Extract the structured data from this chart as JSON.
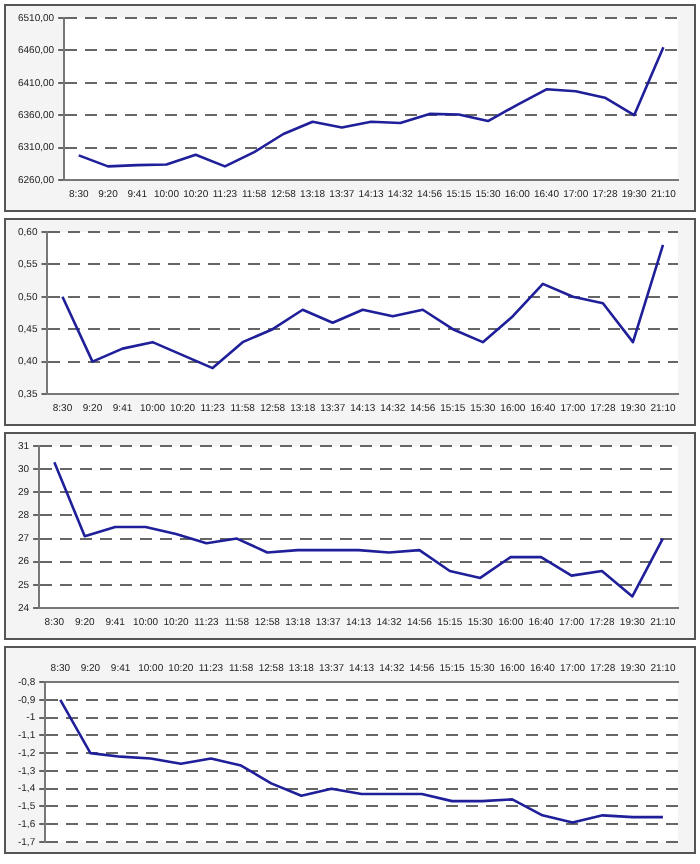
{
  "chart_data": [
    {
      "type": "line",
      "categories": [
        "8:30",
        "9:20",
        "9:41",
        "10:00",
        "10:20",
        "11:23",
        "11:58",
        "12:58",
        "13:18",
        "13:37",
        "14:13",
        "14:32",
        "14:56",
        "15:15",
        "15:30",
        "16:00",
        "16:40",
        "17:00",
        "17:28",
        "19:30",
        "21:10"
      ],
      "series": [
        {
          "color": "#1f1f9a",
          "values": [
            6298,
            6281,
            6283,
            6284,
            6299,
            6281,
            6303,
            6331,
            6350,
            6341,
            6350,
            6348,
            6362,
            6361,
            6351,
            6376,
            6400,
            6397,
            6387,
            6360,
            6465
          ]
        }
      ],
      "ylim": [
        6260,
        6510
      ],
      "yticks": [
        {
          "value": 6260,
          "label": "6260,00"
        },
        {
          "value": 6310,
          "label": "6310,00"
        },
        {
          "value": 6360,
          "label": "6360,00"
        },
        {
          "value": 6410,
          "label": "6410,00"
        },
        {
          "value": 6460,
          "label": "6460,00"
        },
        {
          "value": 6510,
          "label": "6510,00"
        }
      ],
      "grid": "y",
      "legend": false,
      "marker": "none",
      "line_style": "solid"
    },
    {
      "type": "line",
      "categories": [
        "8:30",
        "9:20",
        "9:41",
        "10:00",
        "10:20",
        "11:23",
        "11:58",
        "12:58",
        "13:18",
        "13:37",
        "14:13",
        "14:32",
        "14:56",
        "15:15",
        "15:30",
        "16:00",
        "16:40",
        "17:00",
        "17:28",
        "19:30",
        "21:10"
      ],
      "series": [
        {
          "color": "#1f1f9a",
          "values": [
            0.5,
            0.4,
            0.42,
            0.43,
            0.41,
            0.39,
            0.43,
            0.45,
            0.48,
            0.46,
            0.48,
            0.47,
            0.48,
            0.45,
            0.43,
            0.47,
            0.52,
            0.5,
            0.49,
            0.43,
            0.58
          ]
        }
      ],
      "ylim": [
        0.35,
        0.6
      ],
      "yticks": [
        {
          "value": 0.35,
          "label": "0,35"
        },
        {
          "value": 0.4,
          "label": "0,40"
        },
        {
          "value": 0.45,
          "label": "0,45"
        },
        {
          "value": 0.5,
          "label": "0,50"
        },
        {
          "value": 0.55,
          "label": "0,55"
        },
        {
          "value": 0.6,
          "label": "0,60"
        }
      ],
      "grid": "y",
      "legend": false,
      "marker": "none",
      "line_style": "solid"
    },
    {
      "type": "line",
      "categories": [
        "8:30",
        "9:20",
        "9:41",
        "10:00",
        "10:20",
        "11:23",
        "11:58",
        "12:58",
        "13:18",
        "13:37",
        "14:13",
        "14:32",
        "14:56",
        "15:15",
        "15:30",
        "16:00",
        "16:40",
        "17:00",
        "17:28",
        "19:30",
        "21:10"
      ],
      "series": [
        {
          "color": "#1f1f9a",
          "values": [
            30.3,
            27.1,
            27.5,
            27.5,
            27.2,
            26.8,
            27,
            26.4,
            26.5,
            26.5,
            26.5,
            26.4,
            26.5,
            25.6,
            25.3,
            26.2,
            26.2,
            25.4,
            25.6,
            24.5,
            27
          ]
        }
      ],
      "ylim": [
        24,
        31
      ],
      "yticks": [
        24,
        25,
        26,
        27,
        28,
        29,
        30,
        31
      ],
      "grid": "y",
      "legend": false,
      "marker": "none",
      "line_style": "solid"
    },
    {
      "type": "line",
      "categories": [
        "8:30",
        "9:20",
        "9:41",
        "10:00",
        "10:20",
        "11:23",
        "11:58",
        "12:58",
        "13:18",
        "13:37",
        "14:13",
        "14:32",
        "14:56",
        "15:15",
        "15:30",
        "16:00",
        "16:40",
        "17:00",
        "17:28",
        "19:30",
        "21:10"
      ],
      "series": [
        {
          "color": "#1f1f9a",
          "values": [
            -0.9,
            -1.2,
            -1.22,
            -1.23,
            -1.26,
            -1.23,
            -1.27,
            -1.37,
            -1.44,
            -1.4,
            -1.43,
            -1.43,
            -1.43,
            -1.47,
            -1.47,
            -1.46,
            -1.55,
            -1.59,
            -1.55,
            -1.56,
            -1.56
          ]
        }
      ],
      "ylim": [
        -1.7,
        -0.8
      ],
      "yticks": [
        {
          "value": -1.7,
          "label": "-1,7"
        },
        {
          "value": -1.6,
          "label": "-1,6"
        },
        {
          "value": -1.5,
          "label": "-1,5"
        },
        {
          "value": -1.4,
          "label": "-1,4"
        },
        {
          "value": -1.3,
          "label": "-1,3"
        },
        {
          "value": -1.2,
          "label": "-1,2"
        },
        {
          "value": -1.1,
          "label": "-1,1"
        },
        {
          "value": -1,
          "label": "-1"
        },
        {
          "value": -0.9,
          "label": "-0,9"
        },
        {
          "value": -0.8,
          "label": "-0,8"
        }
      ],
      "grid": "y",
      "legend": false,
      "marker": "none",
      "line_style": "solid"
    }
  ]
}
